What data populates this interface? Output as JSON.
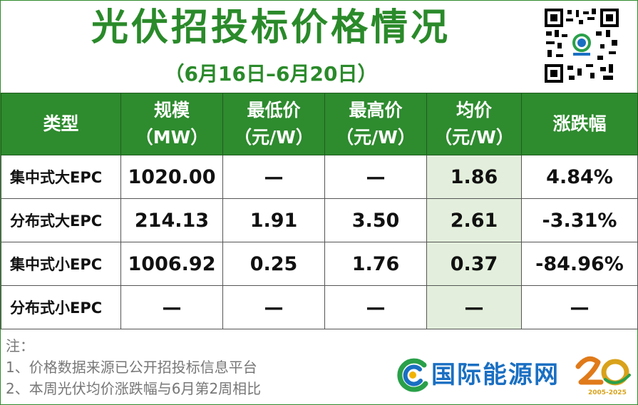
{
  "header": {
    "title": "光伏招投标价格情况",
    "subtitle": "（6月16日–6月20日）"
  },
  "table": {
    "columns": [
      {
        "line1": "类型",
        "line2": ""
      },
      {
        "line1": "规模",
        "line2": "（MW）"
      },
      {
        "line1": "最低价",
        "line2": "（元/W）"
      },
      {
        "line1": "最高价",
        "line2": "（元/W）"
      },
      {
        "line1": "均价",
        "line2": "（元/W）"
      },
      {
        "line1": "涨跌幅",
        "line2": ""
      }
    ],
    "rows": [
      [
        "集中式大EPC",
        "1020.00",
        "—",
        "—",
        "1.86",
        "4.84%"
      ],
      [
        "分布式大EPC",
        "214.13",
        "1.91",
        "3.50",
        "2.61",
        "-3.31%"
      ],
      [
        "集中式小EPC",
        "1006.92",
        "0.25",
        "1.76",
        "0.37",
        "-84.96%"
      ],
      [
        "分布式小EPC",
        "—",
        "—",
        "—",
        "—",
        "—"
      ]
    ]
  },
  "notes": {
    "heading": "注：",
    "items": [
      "1、价格数据来源已公开招投标信息平台",
      "2、本周光伏均价涨跌幅与6月第2周相比"
    ]
  },
  "branding": {
    "logo_text": "国际能源网",
    "qr_icon": "qr-code-icon",
    "anniversary_text": "20",
    "anniversary_caption": "2005-2025"
  },
  "colors": {
    "brand_green": "#2e8b2e",
    "title_green": "#2a8a2a",
    "avg_highlight": "#e3efdc",
    "logo_blue": "#1a6fc2"
  }
}
